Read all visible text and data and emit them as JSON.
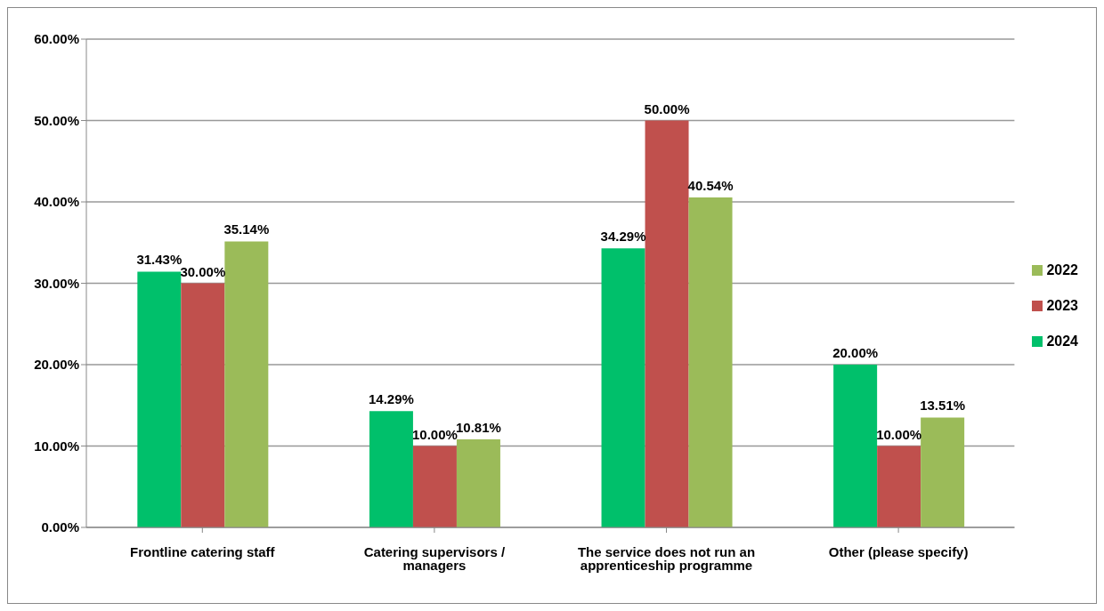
{
  "chart_data": {
    "type": "bar",
    "categories": [
      "Frontline catering staff",
      "Catering supervisors / managers",
      "The service does not run an apprenticeship programme",
      "Other (please specify)"
    ],
    "series": [
      {
        "name": "2024",
        "color": "#00c06b",
        "values": [
          31.43,
          14.29,
          34.29,
          20.0
        ],
        "value_labels": [
          "31.43%",
          "14.29%",
          "34.29%",
          "20.00%"
        ]
      },
      {
        "name": "2023",
        "color": "#c0504d",
        "values": [
          30.0,
          10.0,
          50.0,
          10.0
        ],
        "value_labels": [
          "30.00%",
          "10.00%",
          "50.00%",
          "10.00%"
        ]
      },
      {
        "name": "2022",
        "color": "#9bbb59",
        "values": [
          35.14,
          10.81,
          40.54,
          13.51
        ],
        "value_labels": [
          "35.14%",
          "10.81%",
          "40.54%",
          "13.51%"
        ]
      }
    ],
    "ylim": [
      0,
      60
    ],
    "yticks": [
      {
        "value": 0,
        "label": "0.00%"
      },
      {
        "value": 10,
        "label": "10.00%"
      },
      {
        "value": 20,
        "label": "20.00%"
      },
      {
        "value": 30,
        "label": "30.00%"
      },
      {
        "value": 40,
        "label": "40.00%"
      },
      {
        "value": 50,
        "label": "50.00%"
      },
      {
        "value": 60,
        "label": "60.00%"
      }
    ],
    "grid": "y",
    "legend": "right"
  }
}
